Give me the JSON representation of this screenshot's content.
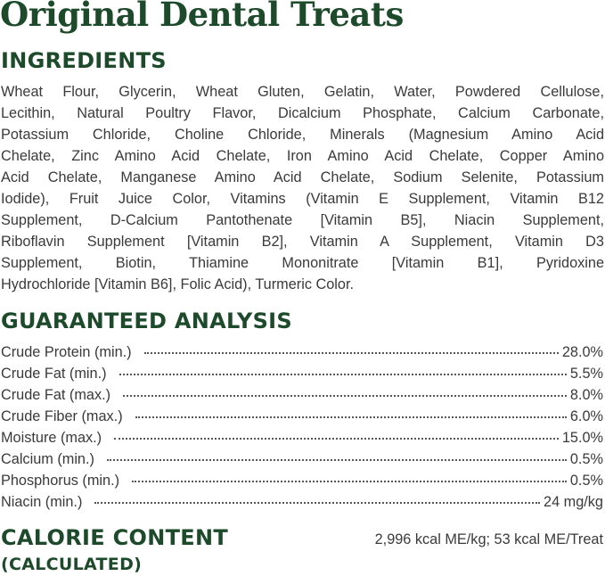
{
  "title": "Original Dental Treats",
  "ingredients": {
    "heading": "INGREDIENTS",
    "lines": [
      "Wheat Flour, Glycerin, Wheat Gluten, Gelatin, Water, Powdered Cellulose,",
      "Lecithin, Natural Poultry Flavor, Dicalcium Phosphate, Calcium Carbonate,",
      "Potassium Chloride, Choline Chloride, Minerals (Magnesium Amino Acid",
      "Chelate, Zinc Amino Acid Chelate, Iron Amino Acid Chelate, Copper Amino",
      "Acid Chelate, Manganese Amino Acid Chelate, Sodium Selenite, Potassium",
      "Iodide), Fruit Juice Color, Vitamins (Vitamin E Supplement, Vitamin B12",
      "Supplement, D-Calcium Pantothenate [Vitamin B5], Niacin Supplement,",
      "Riboflavin Supplement [Vitamin B2], Vitamin A Supplement, Vitamin D3",
      "Supplement, Biotin, Thiamine Mononitrate [Vitamin B1], Pyridoxine",
      "Hydrochloride [Vitamin B6], Folic Acid), Turmeric Color."
    ]
  },
  "guaranteed_analysis": {
    "heading": "GUARANTEED ANALYSIS",
    "rows": [
      {
        "label": "Crude Protein (min.)",
        "value": "28.0%"
      },
      {
        "label": "Crude Fat (min.)",
        "value": "5.5%"
      },
      {
        "label": "Crude Fat (max.)",
        "value": "8.0%"
      },
      {
        "label": "Crude Fiber (max.)",
        "value": "6.0%"
      },
      {
        "label": "Moisture (max.)",
        "value": "15.0%"
      },
      {
        "label": "Calcium (min.)",
        "value": "0.5%"
      },
      {
        "label": "Phosphorus (min.)",
        "value": "0.5%"
      },
      {
        "label": "Niacin (min.)",
        "value": "24 mg/kg"
      }
    ]
  },
  "calorie_content": {
    "heading": "CALORIE CONTENT",
    "subheading": "(CALCULATED)",
    "value": "2,996 kcal ME/kg; 53 kcal ME/Treat"
  },
  "colors": {
    "brand_green": "#1d4a2a",
    "text": "#3a3a3a"
  }
}
